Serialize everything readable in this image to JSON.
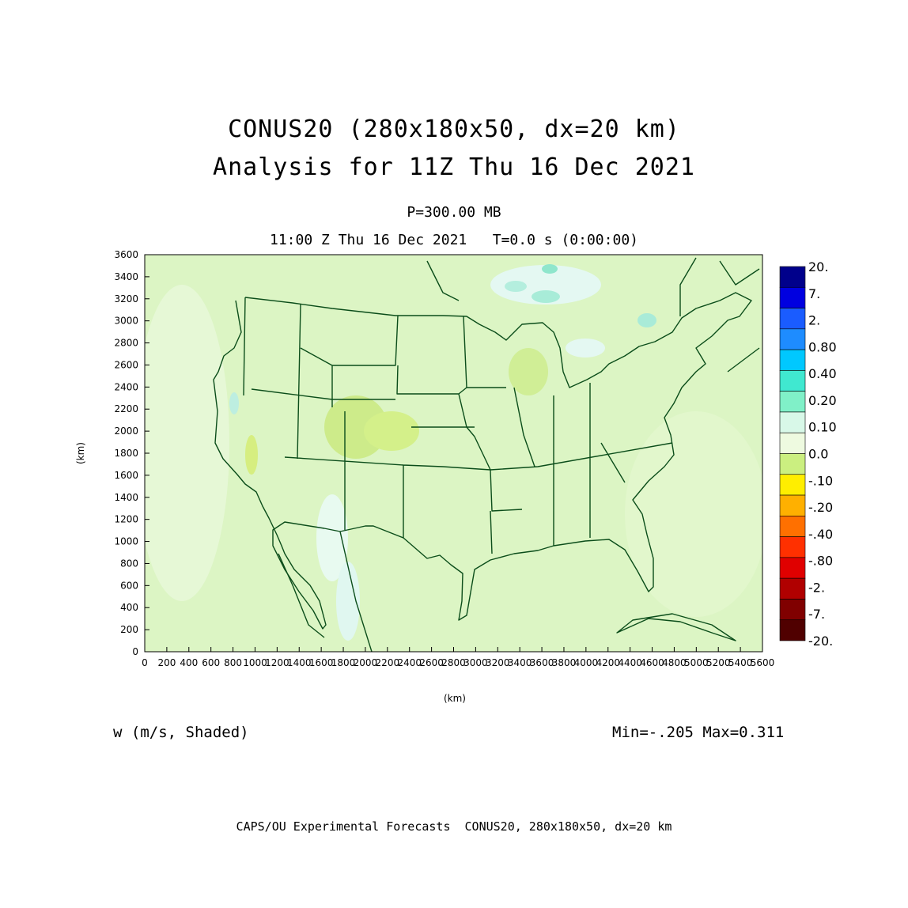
{
  "title": {
    "line1": "CONUS20 (280x180x50, dx=20 km)",
    "line2": "Analysis for 11Z Thu 16 Dec 2021"
  },
  "subtitle": {
    "level": "P=300.00 MB",
    "time": "11:00 Z Thu 16 Dec 2021   T=0.0 s (0:00:00)"
  },
  "axes": {
    "x_label": "(km)",
    "y_label": "(km)",
    "x_ticks": [
      "0",
      "200",
      "400",
      "600",
      "800",
      "1000",
      "1200",
      "1400",
      "1600",
      "1800",
      "2000",
      "2200",
      "2400",
      "2600",
      "2800",
      "3000",
      "3200",
      "3400",
      "3600",
      "3800",
      "4000",
      "4200",
      "4400",
      "4600",
      "4800",
      "5000",
      "5200",
      "5400",
      "5600"
    ],
    "y_ticks": [
      "0",
      "200",
      "400",
      "600",
      "800",
      "1000",
      "1200",
      "1400",
      "1600",
      "1800",
      "2000",
      "2200",
      "2400",
      "2600",
      "2800",
      "3000",
      "3200",
      "3400",
      "3600"
    ]
  },
  "colorbar": {
    "labels": [
      "20.",
      "7.",
      "2.",
      "0.80",
      "0.40",
      "0.20",
      "0.10",
      "0.0",
      "-.10",
      "-.20",
      "-.40",
      "-.80",
      "-2.",
      "-7.",
      "-20."
    ],
    "colors": [
      "#00008b",
      "#0000e0",
      "#1a5cff",
      "#1e8cff",
      "#00c8ff",
      "#40e8d0",
      "#80f0c8",
      "#d8f8e8",
      "#eefae0",
      "#cbef80",
      "#ffee00",
      "#ffb000",
      "#ff7000",
      "#ff3000",
      "#e00000",
      "#b00000",
      "#800000",
      "#500000"
    ]
  },
  "field_label": "w (m/s, Shaded)",
  "stats": "Min=-.205 Max=0.311",
  "footer": "CAPS/OU Experimental Forecasts  CONUS20, 280x180x50, dx=20 km",
  "map": {
    "background_color": "#dcf5c4",
    "boundary_color": "#0b4d1a"
  }
}
